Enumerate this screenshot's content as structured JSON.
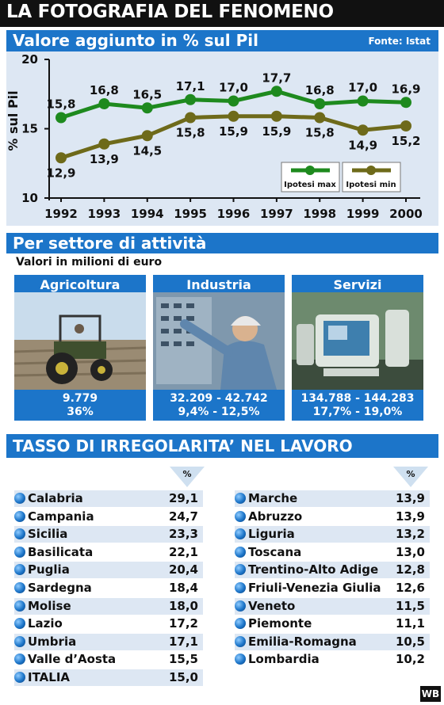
{
  "header": {
    "title": "LA FOTOGRAFIA DEL FENOMENO"
  },
  "section1": {
    "title": "Valore aggiunto in % sul Pil",
    "source": "Fonte: Istat"
  },
  "chart_data": {
    "type": "line",
    "ylabel": "% sul Pil",
    "ylim": [
      10,
      20
    ],
    "yticks": [
      10,
      15,
      20
    ],
    "x": [
      "1992",
      "1993",
      "1994",
      "1995",
      "1996",
      "1997",
      "1998",
      "1999",
      "2000"
    ],
    "series": [
      {
        "name": "Ipotesi max",
        "values": [
          15.8,
          16.8,
          16.5,
          17.1,
          17.0,
          17.7,
          16.8,
          17.0,
          16.9
        ],
        "labels": [
          "15,8",
          "16,8",
          "16,5",
          "17,1",
          "17,0",
          "17,7",
          "16,8",
          "17,0",
          "16,9"
        ],
        "color": "#1e8a1e"
      },
      {
        "name": "Ipotesi min",
        "values": [
          12.9,
          13.9,
          14.5,
          15.8,
          15.9,
          15.9,
          15.8,
          14.9,
          15.2
        ],
        "labels": [
          "12,9",
          "13,9",
          "14,5",
          "15,8",
          "15,9",
          "15,9",
          "15,8",
          "14,9",
          "15,2"
        ],
        "color": "#6e6a1a"
      }
    ],
    "legend": "bottom-right",
    "grid": false
  },
  "section2": {
    "title": "Per settore di attività",
    "subtitle": "Valori in milioni di euro"
  },
  "sectors": [
    {
      "name": "Agricoltura",
      "value": "9.779",
      "percent": "36%"
    },
    {
      "name": "Industria",
      "value": "32.209 - 42.742",
      "percent": "9,4% - 12,5%"
    },
    {
      "name": "Servizi",
      "value": "134.788 - 144.283",
      "percent": "17,7% - 19,0%"
    }
  ],
  "section3": {
    "title": "TASSO DI IRREGOLARITA’ NEL LAVORO",
    "pct_symbol": "%"
  },
  "irregularity_left": [
    {
      "region": "Calabria",
      "value": "29,1"
    },
    {
      "region": "Campania",
      "value": "24,7"
    },
    {
      "region": "Sicilia",
      "value": "23,3"
    },
    {
      "region": "Basilicata",
      "value": "22,1"
    },
    {
      "region": "Puglia",
      "value": "20,4"
    },
    {
      "region": "Sardegna",
      "value": "18,4"
    },
    {
      "region": "Molise",
      "value": "18,0"
    },
    {
      "region": "Lazio",
      "value": "17,2"
    },
    {
      "region": "Umbria",
      "value": "17,1"
    },
    {
      "region": "Valle d’Aosta",
      "value": "15,5"
    },
    {
      "region": "ITALIA",
      "value": "15,0"
    }
  ],
  "irregularity_right": [
    {
      "region": "Marche",
      "value": "13,9"
    },
    {
      "region": "Abruzzo",
      "value": "13,9"
    },
    {
      "region": "Liguria",
      "value": "13,2"
    },
    {
      "region": "Toscana",
      "value": "13,0"
    },
    {
      "region": "Trentino-Alto Adige",
      "value": "12,8"
    },
    {
      "region": "Friuli-Venezia Giulia",
      "value": "12,6"
    },
    {
      "region": "Veneto",
      "value": "11,5"
    },
    {
      "region": "Piemonte",
      "value": "11,1"
    },
    {
      "region": "Emilia-Romagna",
      "value": "10,5"
    },
    {
      "region": "Lombardia",
      "value": "10,2"
    }
  ],
  "footer": {
    "credit": "WB"
  }
}
